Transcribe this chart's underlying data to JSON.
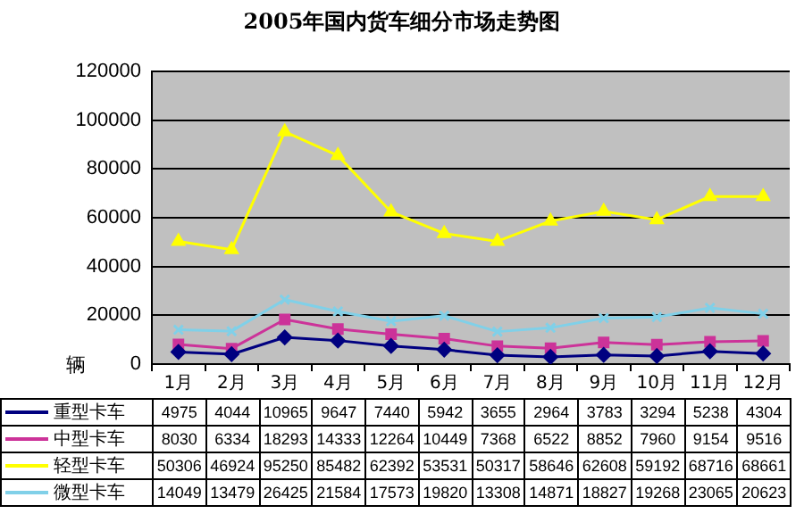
{
  "chart_data": {
    "type": "line",
    "title": "2005年国内货车细分市场走势图",
    "ylabel": "辆",
    "categories": [
      "1月",
      "2月",
      "3月",
      "4月",
      "5月",
      "6月",
      "7月",
      "8月",
      "9月",
      "10月",
      "11月",
      "12月"
    ],
    "series": [
      {
        "name": "重型卡车",
        "color": "#000080",
        "marker": "diamond",
        "values": [
          4975,
          4044,
          10965,
          9647,
          7440,
          5942,
          3655,
          2964,
          3783,
          3294,
          5238,
          4304
        ]
      },
      {
        "name": "中型卡车",
        "color": "#cc3399",
        "marker": "square",
        "values": [
          8030,
          6334,
          18293,
          14333,
          12264,
          10449,
          7368,
          6522,
          8852,
          7960,
          9154,
          9516
        ]
      },
      {
        "name": "轻型卡车",
        "color": "#ffff00",
        "marker": "triangle",
        "values": [
          50306,
          46924,
          95250,
          85482,
          62392,
          53531,
          50317,
          58646,
          62608,
          59192,
          68716,
          68661
        ]
      },
      {
        "name": "微型卡车",
        "color": "#80d0e8",
        "marker": "cross",
        "values": [
          14049,
          13479,
          26425,
          21584,
          17573,
          19820,
          13308,
          14871,
          18827,
          19268,
          23065,
          20623
        ]
      }
    ],
    "ylim": [
      0,
      120000
    ],
    "yticks": [
      0,
      20000,
      40000,
      60000,
      80000,
      100000,
      120000
    ],
    "grid": "y",
    "legend": "bottom",
    "data_labels": true
  }
}
